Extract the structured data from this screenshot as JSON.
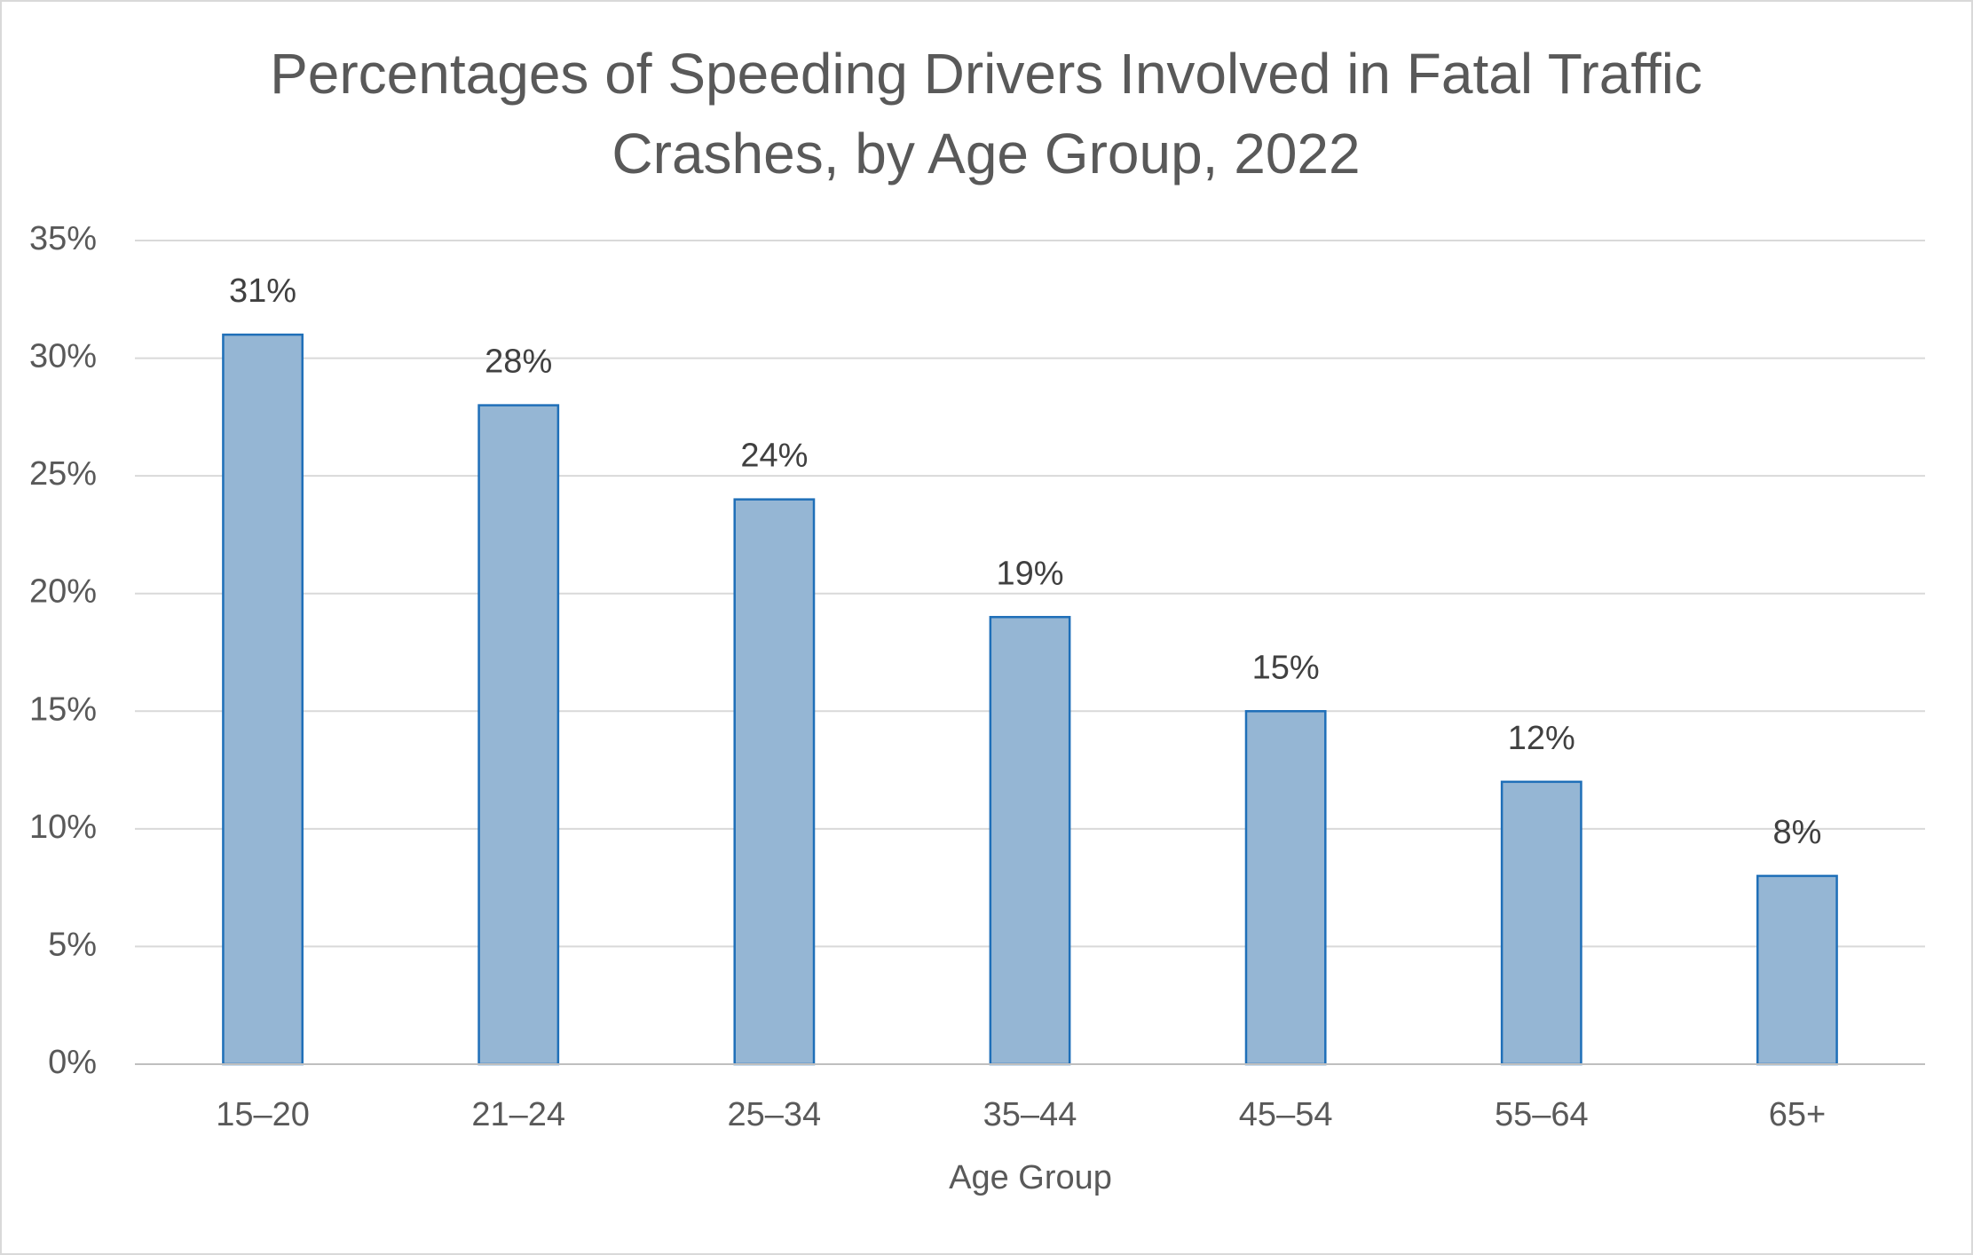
{
  "chart_data": {
    "type": "bar",
    "title": "Percentages of Speeding Drivers Involved in Fatal Traffic Crashes, by Age Group, 2022",
    "x_label": "Age Group",
    "categories": [
      "15–20",
      "21–24",
      "25–34",
      "35–44",
      "45–54",
      "55–64",
      "65+"
    ],
    "values": [
      31,
      28,
      24,
      19,
      15,
      12,
      8
    ],
    "value_labels": [
      "31%",
      "28%",
      "24%",
      "19%",
      "15%",
      "12%",
      "8%"
    ],
    "color": "#95b6d4",
    "edge_color": "#1f6fb8",
    "ylim": [
      0,
      35
    ],
    "yticks": [
      {
        "value": 0,
        "label": "0%"
      },
      {
        "value": 5,
        "label": "5%"
      },
      {
        "value": 10,
        "label": "10%"
      },
      {
        "value": 15,
        "label": "15%"
      },
      {
        "value": 20,
        "label": "20%"
      },
      {
        "value": 25,
        "label": "25%"
      },
      {
        "value": 30,
        "label": "30%"
      },
      {
        "value": 35,
        "label": "35%"
      }
    ],
    "grid": true
  }
}
